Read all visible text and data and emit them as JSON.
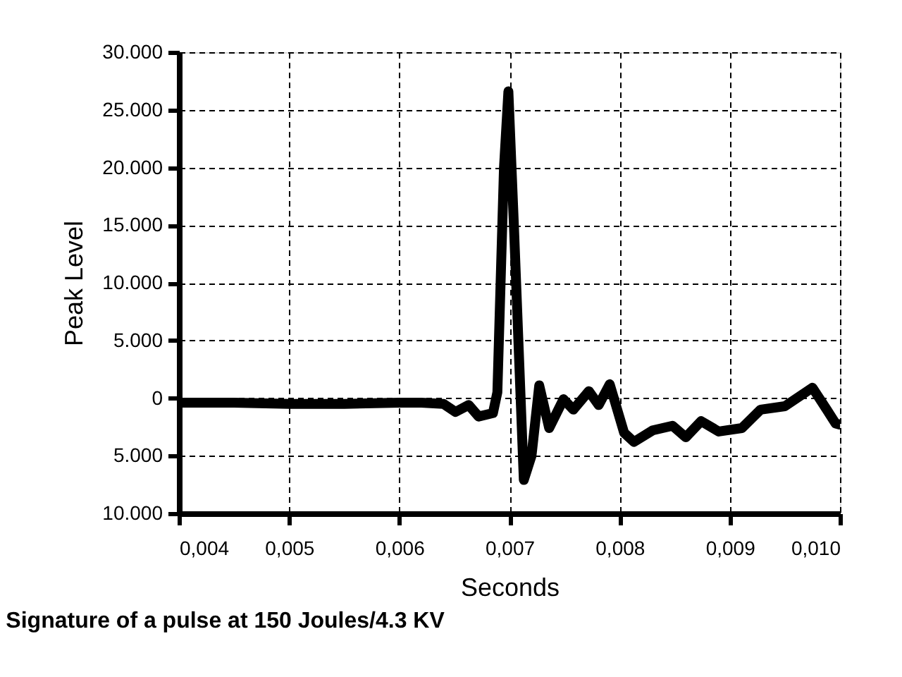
{
  "chart_data": {
    "type": "line",
    "title": "Signature of a pulse at 150 Joules/4.3 KV",
    "xlabel": "Seconds",
    "ylabel": "Peak Level",
    "x": [
      0.004,
      0.0045,
      0.005,
      0.0055,
      0.006,
      0.0062,
      0.0064,
      0.00651,
      0.00663,
      0.00672,
      0.00685,
      0.00689,
      0.00695,
      0.00699,
      0.00704,
      0.00713,
      0.0072,
      0.00727,
      0.00736,
      0.00749,
      0.00758,
      0.00772,
      0.00781,
      0.00791,
      0.00804,
      0.00813,
      0.0083,
      0.00848,
      0.0086,
      0.00874,
      0.0089,
      0.00911,
      0.00928,
      0.0095,
      0.00975,
      0.00988,
      0.00996,
      0.01
    ],
    "series": [
      {
        "color": "#000000",
        "values": [
          -400,
          -400,
          -500,
          -500,
          -400,
          -400,
          -500,
          -1200,
          -600,
          -1600,
          -1300,
          500,
          20000,
          26600,
          15000,
          -7100,
          -5000,
          1100,
          -2600,
          -100,
          -1000,
          600,
          -600,
          1200,
          -3000,
          -3800,
          -2800,
          -2400,
          -3400,
          -2000,
          -2900,
          -2600,
          -1000,
          -700,
          900,
          -1000,
          -2200,
          -2300
        ]
      }
    ],
    "xlim": [
      0.004,
      0.01
    ],
    "xticks": [
      {
        "value": 0.004,
        "label": "0,004"
      },
      {
        "value": 0.005,
        "label": "0,005"
      },
      {
        "value": 0.006,
        "label": "0,006"
      },
      {
        "value": 0.007,
        "label": "0,007"
      },
      {
        "value": 0.008,
        "label": "0,008"
      },
      {
        "value": 0.009,
        "label": "0,009"
      },
      {
        "value": 0.01,
        "label": "0,010"
      }
    ],
    "ylim": [
      -10000,
      30000
    ],
    "yticks": [
      {
        "value": 30000,
        "label": "30.000"
      },
      {
        "value": 25000,
        "label": "25.000"
      },
      {
        "value": 20000,
        "label": "20.000"
      },
      {
        "value": 15000,
        "label": "15.000"
      },
      {
        "value": 10000,
        "label": "10.000"
      },
      {
        "value": 5000,
        "label": "5.000"
      },
      0,
      {
        "value": -5000,
        "label": "5.000"
      },
      {
        "value": -10000,
        "label": "10.000"
      }
    ],
    "grid": true,
    "line_style": "solid"
  }
}
